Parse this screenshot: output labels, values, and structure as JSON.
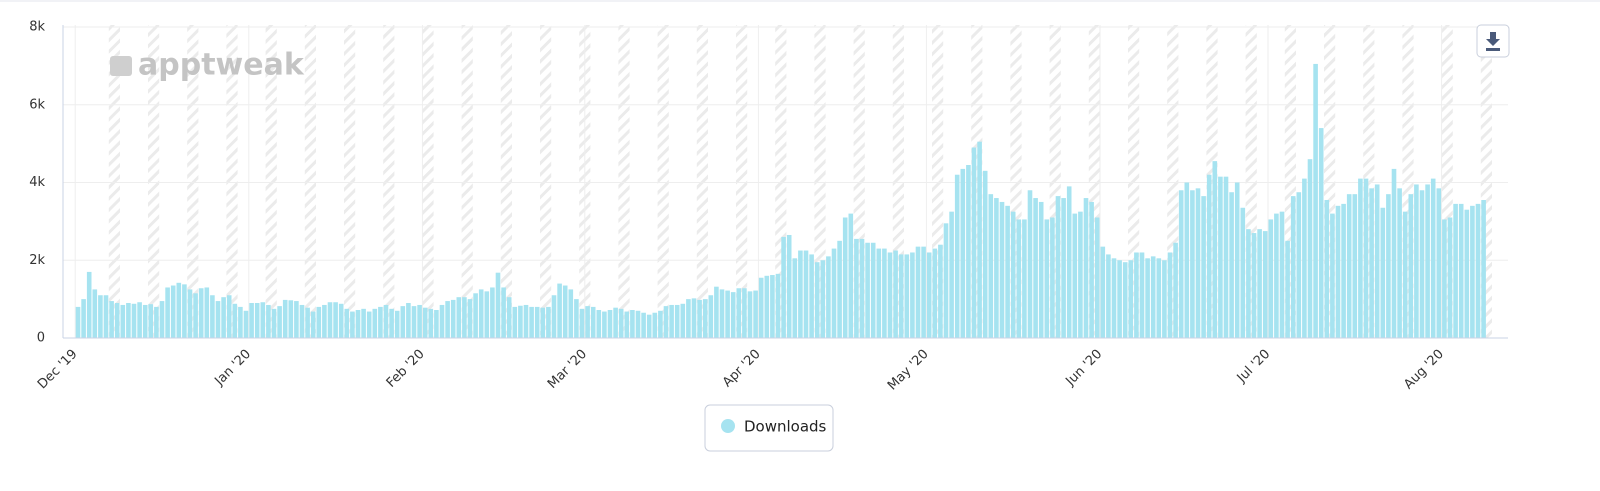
{
  "chart_data": {
    "type": "bar",
    "watermark": "apptweak",
    "categories": [
      "Dec '19",
      null,
      null,
      null,
      null,
      null,
      null,
      null,
      null,
      null,
      null,
      null,
      null,
      null,
      null,
      null,
      null,
      null,
      null,
      null,
      null,
      null,
      null,
      null,
      null,
      null,
      null,
      null,
      null,
      null,
      null,
      "Jan '20",
      null,
      null,
      null,
      null,
      null,
      null,
      null,
      null,
      null,
      null,
      null,
      null,
      null,
      null,
      null,
      null,
      null,
      null,
      null,
      null,
      null,
      null,
      null,
      null,
      null,
      null,
      null,
      null,
      null,
      null,
      "Feb '20",
      null,
      null,
      null,
      null,
      null,
      null,
      null,
      null,
      null,
      null,
      null,
      null,
      null,
      null,
      null,
      null,
      null,
      null,
      null,
      null,
      null,
      null,
      null,
      null,
      null,
      null,
      null,
      null,
      "Mar '20",
      null,
      null,
      null,
      null,
      null,
      null,
      null,
      null,
      null,
      null,
      null,
      null,
      null,
      null,
      null,
      null,
      null,
      null,
      null,
      null,
      null,
      null,
      null,
      null,
      null,
      null,
      null,
      null,
      null,
      null,
      "Apr '20",
      null,
      null,
      null,
      null,
      null,
      null,
      null,
      null,
      null,
      null,
      null,
      null,
      null,
      null,
      null,
      null,
      null,
      null,
      null,
      null,
      null,
      null,
      null,
      null,
      null,
      null,
      null,
      null,
      null,
      "May '20",
      null,
      null,
      null,
      null,
      null,
      null,
      null,
      null,
      null,
      null,
      null,
      null,
      null,
      null,
      null,
      null,
      null,
      null,
      null,
      null,
      null,
      null,
      null,
      null,
      null,
      null,
      null,
      null,
      null,
      null,
      "Jun '20",
      null,
      null,
      null,
      null,
      null,
      null,
      null,
      null,
      null,
      null,
      null,
      null,
      null,
      null,
      null,
      null,
      null,
      null,
      null,
      null,
      null,
      null,
      null,
      null,
      null,
      null,
      null,
      null,
      null,
      "Jul '20",
      null,
      null,
      null,
      null,
      null,
      null,
      null,
      null,
      null,
      null,
      null,
      null,
      null,
      null,
      null,
      null,
      null,
      null,
      null,
      null,
      null,
      null,
      null,
      null,
      null,
      null,
      null,
      null,
      null,
      null,
      "Aug '20",
      null,
      null,
      null,
      null,
      null,
      null,
      null
    ],
    "series": [
      {
        "name": "Downloads",
        "color": "#a6e3f0",
        "values": [
          800,
          1000,
          1700,
          1250,
          1100,
          1100,
          950,
          900,
          850,
          900,
          880,
          920,
          850,
          870,
          800,
          950,
          1300,
          1350,
          1420,
          1380,
          1250,
          1150,
          1280,
          1300,
          1100,
          950,
          1050,
          1100,
          880,
          800,
          700,
          900,
          900,
          920,
          850,
          750,
          820,
          980,
          970,
          950,
          850,
          780,
          680,
          800,
          850,
          920,
          920,
          880,
          750,
          680,
          720,
          750,
          680,
          750,
          800,
          850,
          750,
          700,
          820,
          900,
          820,
          850,
          780,
          750,
          720,
          850,
          950,
          980,
          1050,
          1050,
          1000,
          1150,
          1250,
          1200,
          1300,
          1680,
          1300,
          1050,
          800,
          830,
          850,
          800,
          800,
          780,
          800,
          1100,
          1400,
          1350,
          1250,
          1000,
          750,
          820,
          800,
          720,
          680,
          720,
          780,
          750,
          680,
          720,
          700,
          650,
          600,
          650,
          700,
          820,
          850,
          850,
          880,
          1000,
          1020,
          980,
          1000,
          1100,
          1320,
          1250,
          1220,
          1180,
          1280,
          1280,
          1200,
          1220,
          1550,
          1600,
          1620,
          1650,
          2600,
          2650,
          2050,
          2250,
          2250,
          2150,
          1950,
          2000,
          2100,
          2300,
          2500,
          3100,
          3200,
          2550,
          2550,
          2450,
          2450,
          2300,
          2300,
          2200,
          2250,
          2150,
          2150,
          2200,
          2350,
          2350,
          2200,
          2300,
          2400,
          2950,
          3250,
          4200,
          4350,
          4450,
          4900,
          5050,
          4300,
          3700,
          3600,
          3500,
          3400,
          3250,
          3050,
          3050,
          3800,
          3600,
          3500,
          3050,
          3100,
          3650,
          3600,
          3900,
          3200,
          3250,
          3600,
          3500,
          3100,
          2350,
          2150,
          2050,
          2000,
          1950,
          2000,
          2200,
          2200,
          2050,
          2100,
          2050,
          2000,
          2200,
          2450,
          3800,
          4000,
          3800,
          3850,
          3650,
          4200,
          4550,
          4150,
          4150,
          3750,
          4000,
          3350,
          2800,
          2700,
          2800,
          2750,
          3050,
          3200,
          3250,
          2500,
          3650,
          3750,
          4100,
          4600,
          7050,
          5400,
          3550,
          3200,
          3400,
          3450,
          3700,
          3700,
          4100,
          4100,
          3850,
          3950,
          3350,
          3700,
          4350,
          3850,
          3250,
          3700,
          3950,
          3800,
          3950,
          4100,
          3850,
          3050,
          3100,
          3450,
          3450,
          3300,
          3400,
          3450,
          3550
        ]
      }
    ],
    "ylim": [
      0,
      8000
    ],
    "yticks": [
      {
        "value": 0,
        "label": "0"
      },
      {
        "value": 2000,
        "label": "2k"
      },
      {
        "value": 4000,
        "label": "4k"
      },
      {
        "value": 6000,
        "label": "6k"
      },
      {
        "value": 8000,
        "label": "8k"
      }
    ],
    "grid": true
  }
}
